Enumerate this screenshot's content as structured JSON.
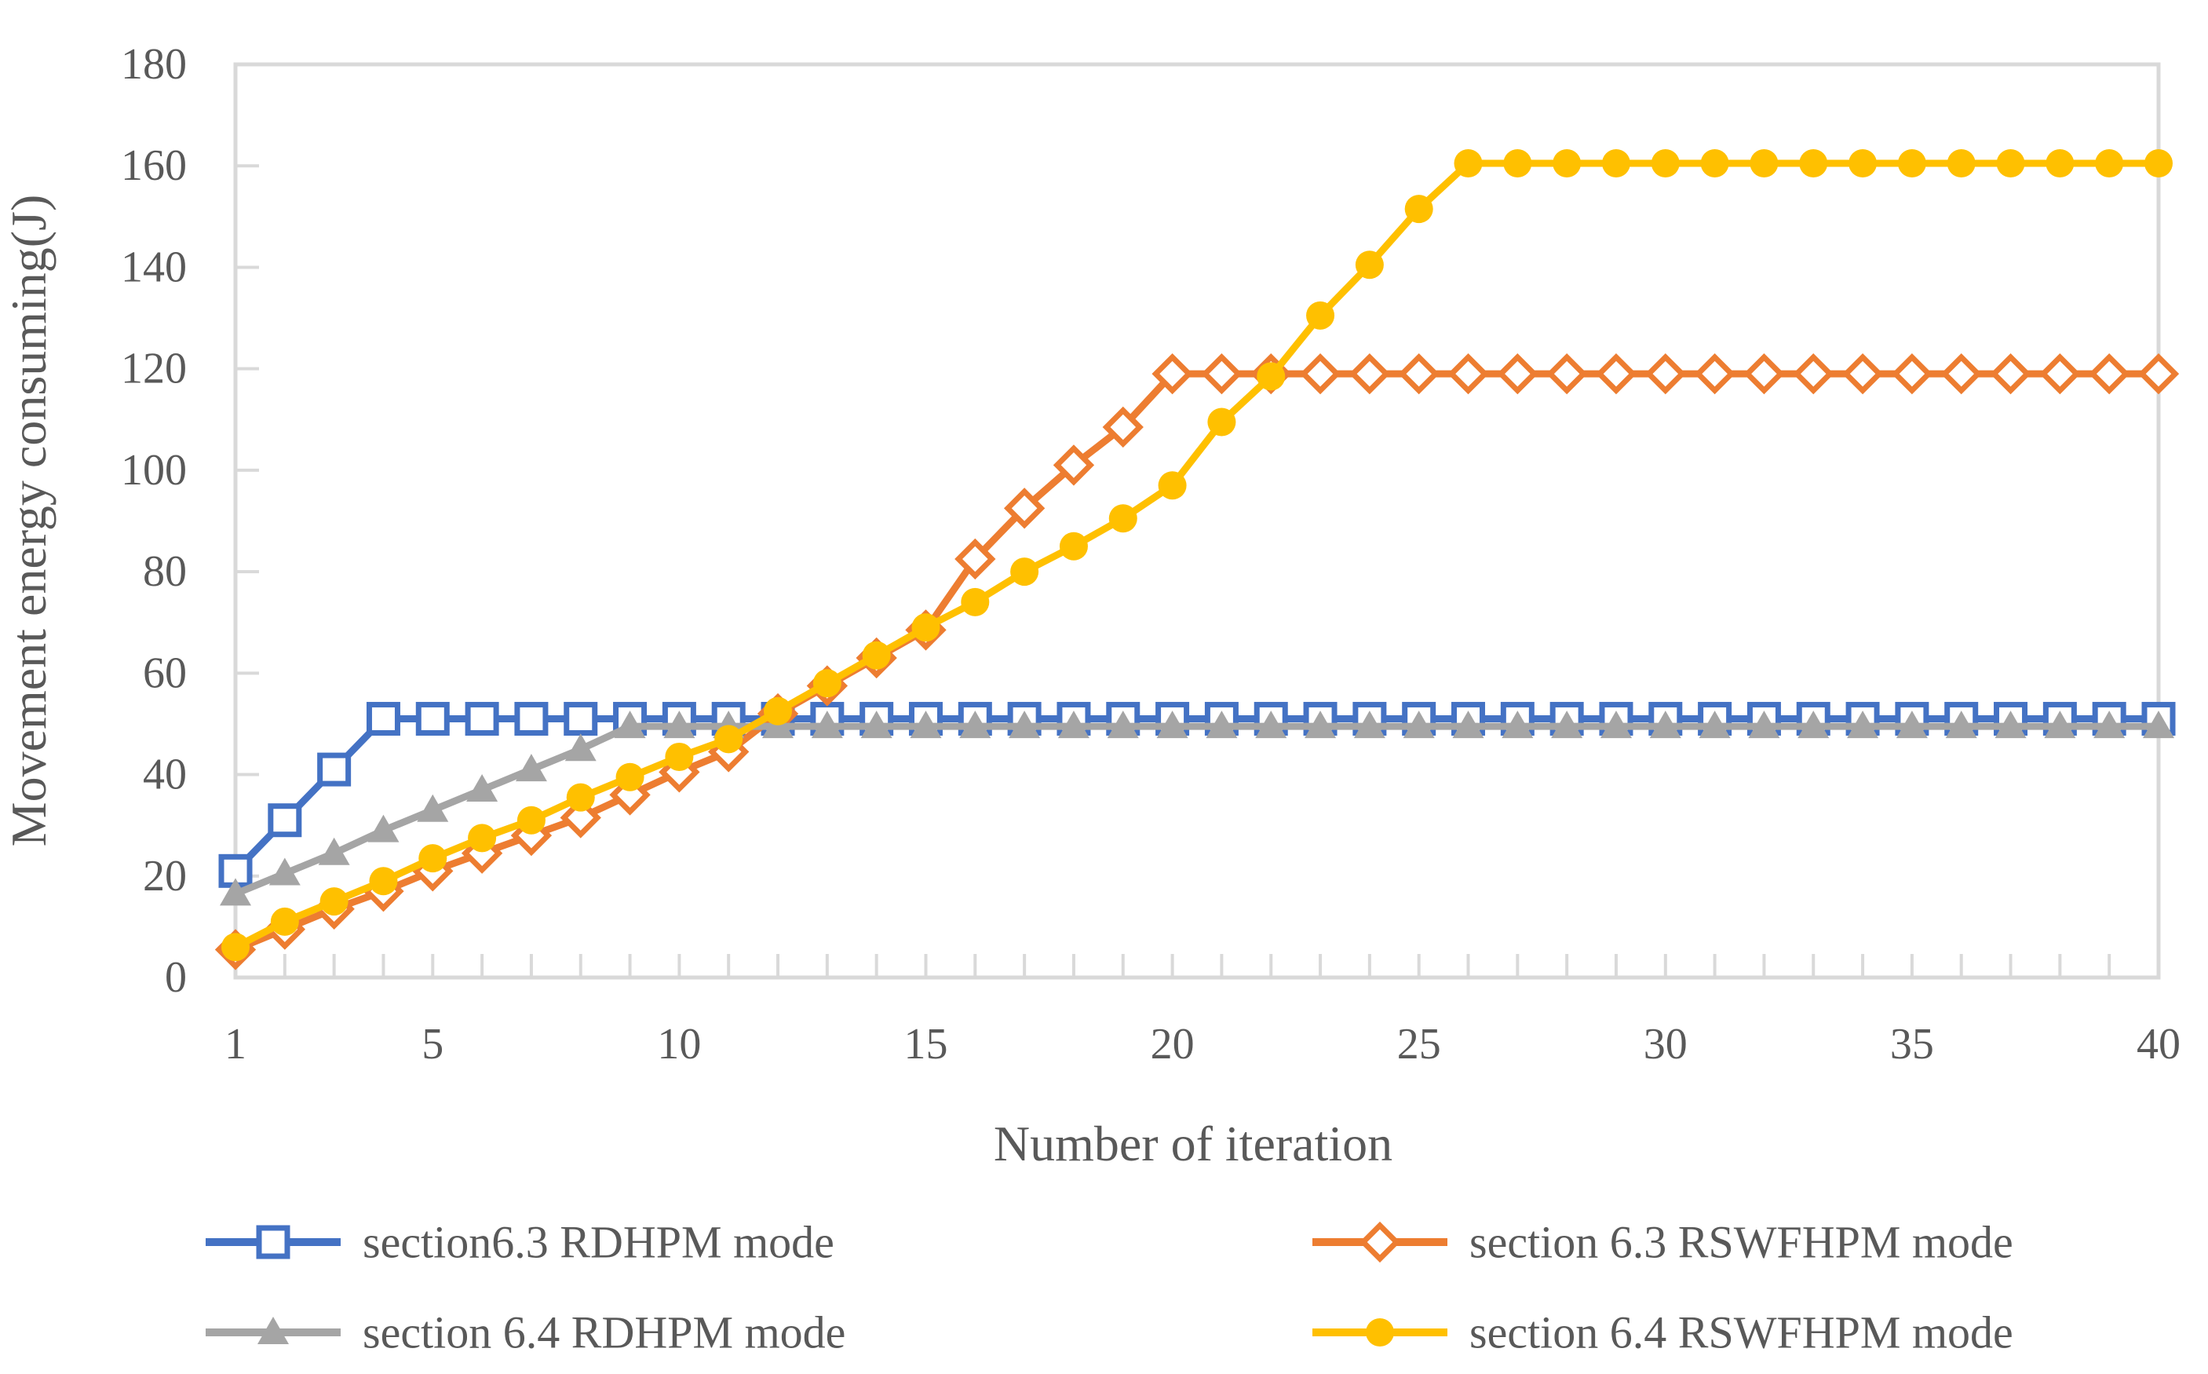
{
  "chart_data": {
    "type": "line",
    "title": "",
    "xlabel": "Number of iteration",
    "ylabel": "Movement energy consuming(J)",
    "xlim": [
      1,
      40
    ],
    "ylim": [
      0,
      180
    ],
    "x_ticks": [
      1,
      5,
      10,
      15,
      20,
      25,
      30,
      35,
      40
    ],
    "y_ticks": [
      0,
      20,
      40,
      60,
      80,
      100,
      120,
      140,
      160,
      180
    ],
    "grid": false,
    "legend_position": "bottom",
    "axis_color": "#d9d9d9",
    "text_color": "#595959",
    "x": [
      1,
      2,
      3,
      4,
      5,
      6,
      7,
      8,
      9,
      10,
      11,
      12,
      13,
      14,
      15,
      16,
      17,
      18,
      19,
      20,
      21,
      22,
      23,
      24,
      25,
      26,
      27,
      28,
      29,
      30,
      31,
      32,
      33,
      34,
      35,
      36,
      37,
      38,
      39,
      40
    ],
    "series": [
      {
        "name": "section6.3 RDHPM mode",
        "color": "#4472C4",
        "marker": "square",
        "marker_fill": "hollow",
        "values": [
          21,
          31,
          41,
          51,
          51,
          51,
          51,
          51,
          51,
          51,
          51,
          51,
          51,
          51,
          51,
          51,
          51,
          51,
          51,
          51,
          51,
          51,
          51,
          51,
          51,
          51,
          51,
          51,
          51,
          51,
          51,
          51,
          51,
          51,
          51,
          51,
          51,
          51,
          51,
          51
        ]
      },
      {
        "name": "section 6.3 RSWFHPM mode",
        "color": "#ED7D31",
        "marker": "diamond",
        "marker_fill": "hollow",
        "values": [
          5.5,
          9.5,
          13.5,
          17,
          21,
          24.5,
          28,
          31.5,
          36,
          40.5,
          44.5,
          52,
          57.5,
          63,
          68.5,
          82.5,
          92.5,
          101,
          108.5,
          119,
          119,
          119,
          119,
          119,
          119,
          119,
          119,
          119,
          119,
          119,
          119,
          119,
          119,
          119,
          119,
          119,
          119,
          119,
          119,
          119
        ]
      },
      {
        "name": "section 6.4 RDHPM mode",
        "color": "#A5A5A5",
        "marker": "triangle",
        "marker_fill": "solid",
        "values": [
          16.5,
          20.5,
          24.5,
          29,
          33,
          37,
          41,
          45,
          49.5,
          49.5,
          49.5,
          49.5,
          49.5,
          49.5,
          49.5,
          49.5,
          49.5,
          49.5,
          49.5,
          49.5,
          49.5,
          49.5,
          49.5,
          49.5,
          49.5,
          49.5,
          49.5,
          49.5,
          49.5,
          49.5,
          49.5,
          49.5,
          49.5,
          49.5,
          49.5,
          49.5,
          49.5,
          49.5,
          49.5,
          49.5
        ]
      },
      {
        "name": "section 6.4 RSWFHPM mode",
        "color": "#FFC000",
        "marker": "circle",
        "marker_fill": "solid",
        "values": [
          6,
          11,
          15,
          19,
          23.5,
          27.5,
          31,
          35.5,
          39.5,
          43.5,
          47,
          52.5,
          58,
          63.5,
          69,
          74,
          80,
          85,
          90.5,
          97,
          109.5,
          118.5,
          130.5,
          140.5,
          151.5,
          160.5,
          160.5,
          160.5,
          160.5,
          160.5,
          160.5,
          160.5,
          160.5,
          160.5,
          160.5,
          160.5,
          160.5,
          160.5,
          160.5,
          160.5
        ]
      }
    ]
  }
}
